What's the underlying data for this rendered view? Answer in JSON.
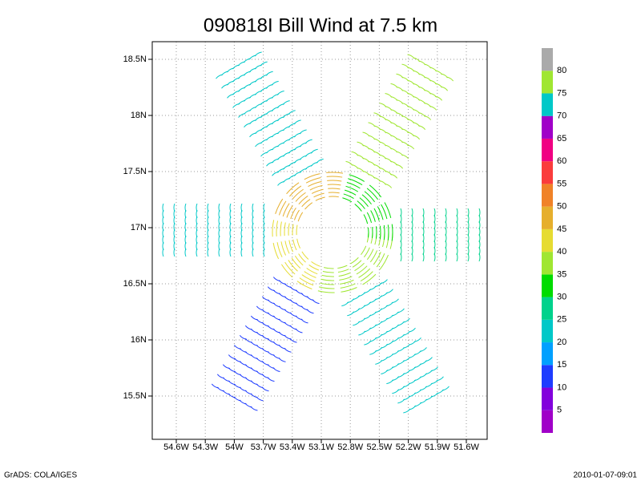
{
  "title": "090818I Bill Wind at 7.5 km",
  "x_axis": {
    "labels": [
      "54.6W",
      "54.3W",
      "54W",
      "53.7W",
      "53.4W",
      "53.1W",
      "52.8W",
      "52.5W",
      "52.2W",
      "51.9W",
      "51.6W"
    ]
  },
  "y_axis": {
    "labels": [
      "18.5N",
      "18N",
      "17.5N",
      "17N",
      "16.5N",
      "16N",
      "15.5N"
    ]
  },
  "colorbar": {
    "labels": [
      "5",
      "10",
      "15",
      "20",
      "25",
      "30",
      "35",
      "40",
      "45",
      "50",
      "55",
      "60",
      "65",
      "70",
      "75",
      "80"
    ],
    "colors": [
      "#a000c8",
      "#8200dc",
      "#1e3cff",
      "#00a0ff",
      "#00c8c8",
      "#00d28c",
      "#00dc00",
      "#a0e632",
      "#e6dc32",
      "#e6af2d",
      "#f08228",
      "#fa3c3c",
      "#f00082",
      "#a000c8",
      "#00c8c8",
      "#a0e632",
      "#aaaaaa"
    ]
  },
  "footer": {
    "left": "GrADS: COLA/IGES",
    "right": "2010-01-07-09:01"
  }
}
